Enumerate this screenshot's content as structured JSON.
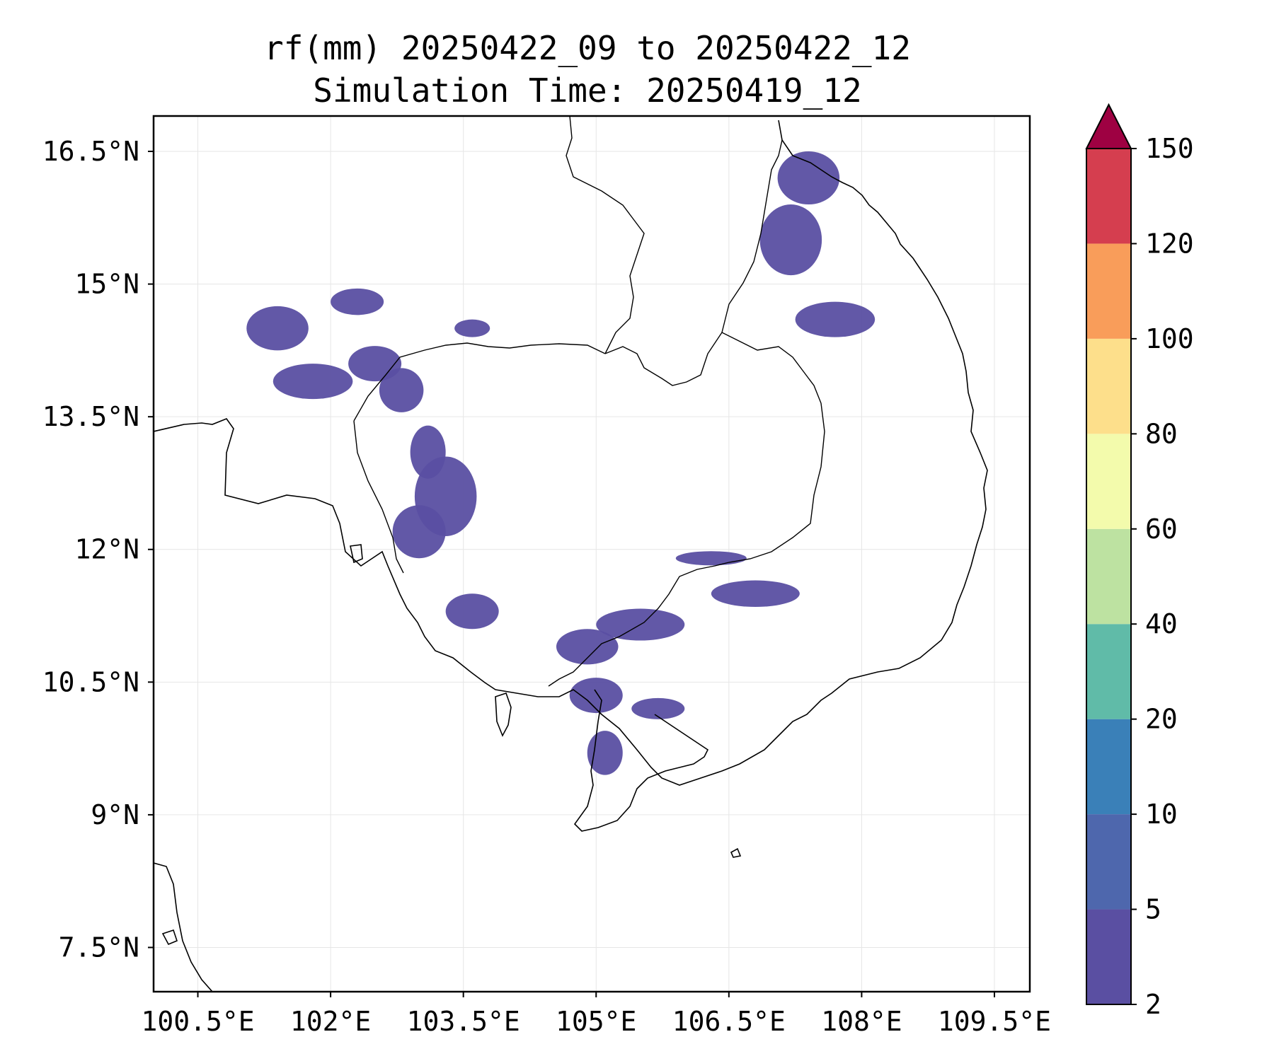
{
  "title": {
    "line1": "rf(mm) 20250422_09 to 20250422_12",
    "line2": "Simulation Time: 20250419_12"
  },
  "map": {
    "lon_range": [
      100.0,
      109.9
    ],
    "lat_range": [
      7.0,
      16.9
    ],
    "gridlines": true,
    "x_ticks": [
      {
        "value": 100.5,
        "label": "100.5°E"
      },
      {
        "value": 102.0,
        "label": "102°E"
      },
      {
        "value": 103.5,
        "label": "103.5°E"
      },
      {
        "value": 105.0,
        "label": "105°E"
      },
      {
        "value": 106.5,
        "label": "106.5°E"
      },
      {
        "value": 108.0,
        "label": "108°E"
      },
      {
        "value": 109.5,
        "label": "109.5°E"
      }
    ],
    "y_ticks": [
      {
        "value": 16.5,
        "label": "16.5°N"
      },
      {
        "value": 15.0,
        "label": "15°N"
      },
      {
        "value": 13.5,
        "label": "13.5°N"
      },
      {
        "value": 12.0,
        "label": "12°N"
      },
      {
        "value": 10.5,
        "label": "10.5°N"
      },
      {
        "value": 9.0,
        "label": "9°N"
      },
      {
        "value": 7.5,
        "label": "7.5°N"
      }
    ],
    "rain_areas": [
      {
        "lon": 101.4,
        "lat": 14.5,
        "rx": 0.35,
        "ry": 0.25,
        "level": 0
      },
      {
        "lon": 101.8,
        "lat": 13.9,
        "rx": 0.45,
        "ry": 0.2,
        "level": 0
      },
      {
        "lon": 102.5,
        "lat": 14.1,
        "rx": 0.3,
        "ry": 0.2,
        "level": 0
      },
      {
        "lon": 102.8,
        "lat": 13.8,
        "rx": 0.25,
        "ry": 0.25,
        "level": 0
      },
      {
        "lon": 103.1,
        "lat": 13.1,
        "rx": 0.2,
        "ry": 0.3,
        "level": 0
      },
      {
        "lon": 103.3,
        "lat": 12.6,
        "rx": 0.35,
        "ry": 0.45,
        "level": 0
      },
      {
        "lon": 103.0,
        "lat": 12.2,
        "rx": 0.3,
        "ry": 0.3,
        "level": 0
      },
      {
        "lon": 103.6,
        "lat": 11.3,
        "rx": 0.3,
        "ry": 0.2,
        "level": 0
      },
      {
        "lon": 104.9,
        "lat": 10.9,
        "rx": 0.35,
        "ry": 0.2,
        "level": 0
      },
      {
        "lon": 105.5,
        "lat": 11.15,
        "rx": 0.5,
        "ry": 0.18,
        "level": 0
      },
      {
        "lon": 106.8,
        "lat": 11.5,
        "rx": 0.5,
        "ry": 0.15,
        "level": 0
      },
      {
        "lon": 106.3,
        "lat": 11.9,
        "rx": 0.4,
        "ry": 0.08,
        "level": 0
      },
      {
        "lon": 105.0,
        "lat": 10.35,
        "rx": 0.3,
        "ry": 0.2,
        "level": 0
      },
      {
        "lon": 105.1,
        "lat": 9.7,
        "rx": 0.2,
        "ry": 0.25,
        "level": 0
      },
      {
        "lon": 105.7,
        "lat": 10.2,
        "rx": 0.3,
        "ry": 0.12,
        "level": 0
      },
      {
        "lon": 107.2,
        "lat": 15.5,
        "rx": 0.35,
        "ry": 0.4,
        "level": 0
      },
      {
        "lon": 107.4,
        "lat": 16.2,
        "rx": 0.35,
        "ry": 0.3,
        "level": 0
      },
      {
        "lon": 107.7,
        "lat": 14.6,
        "rx": 0.45,
        "ry": 0.2,
        "level": 0
      },
      {
        "lon": 102.3,
        "lat": 14.8,
        "rx": 0.3,
        "ry": 0.15,
        "level": 0
      },
      {
        "lon": 103.6,
        "lat": 14.5,
        "rx": 0.2,
        "ry": 0.1,
        "level": 0
      }
    ]
  },
  "colorbar": {
    "levels": [
      "2",
      "5",
      "10",
      "20",
      "40",
      "60",
      "80",
      "100",
      "120",
      "150"
    ],
    "colors": [
      "#5a4fa2",
      "#4e67ad",
      "#3a80b8",
      "#60bba8",
      "#bde2a1",
      "#f3fbac",
      "#fddf8b",
      "#f99d5a",
      "#d53e4f"
    ],
    "extend_color": "#9e0142"
  }
}
